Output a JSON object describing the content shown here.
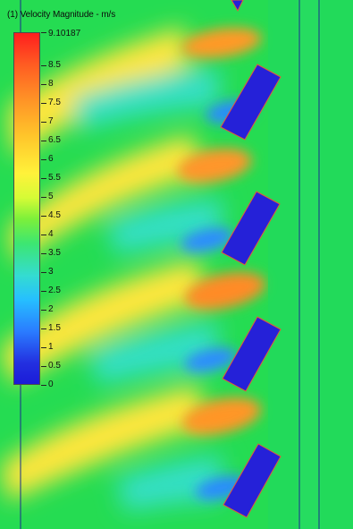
{
  "legend": {
    "title": "(1) Velocity Magnitude - m/s",
    "max_label": "9.10187",
    "ticks": [
      "8.5",
      "8",
      "7.5",
      "7",
      "6.5",
      "6",
      "5.5",
      "5",
      "4.5",
      "4",
      "3.5",
      "3",
      "2.5",
      "2",
      "1.5",
      "1",
      "0.5",
      "0"
    ]
  },
  "colors": {
    "background": "#23dc55",
    "high": "#ff1e1e",
    "low": "#1b1bd8",
    "blade_fill": "#2521d8",
    "blade_outline": "#e25a3a",
    "boundary_lines": "#1b2d8e"
  }
}
